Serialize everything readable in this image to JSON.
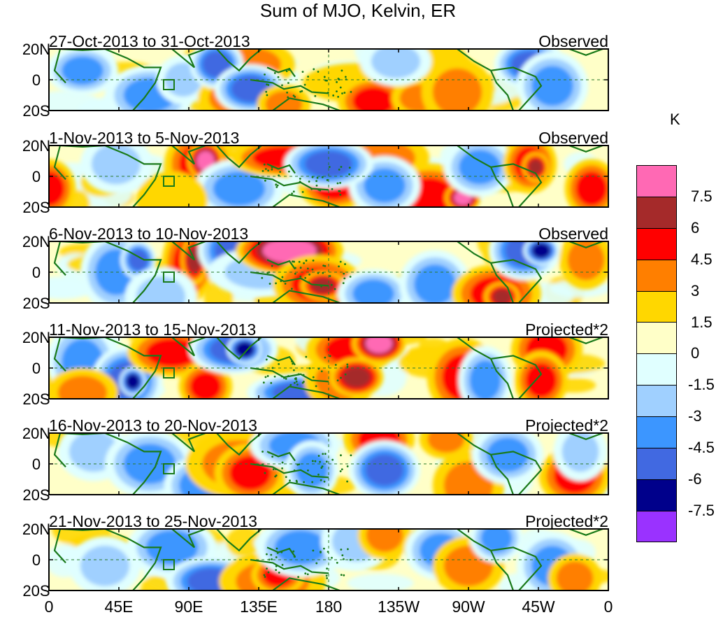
{
  "title": "Sum of MJO, Kelvin, ER",
  "colorbar": {
    "unit": "K",
    "colors": [
      "#ff69b4",
      "#a52a2a",
      "#ff0000",
      "#ff7f00",
      "#ffd700",
      "#ffffc8",
      "#e0ffff",
      "#a0d0ff",
      "#3c96ff",
      "#4169e1",
      "#00008b",
      "#9a32ff"
    ],
    "labels": [
      "7.5",
      "6",
      "4.5",
      "3",
      "1.5",
      "0",
      "-1.5",
      "-3",
      "-4.5",
      "-6",
      "-7.5"
    ]
  },
  "panels": [
    {
      "label": "27-Oct-2013 to 31-Oct-2013",
      "tag": "Observed"
    },
    {
      "label": "1-Nov-2013 to 5-Nov-2013",
      "tag": "Observed"
    },
    {
      "label": "6-Nov-2013 to 10-Nov-2013",
      "tag": "Observed"
    },
    {
      "label": "11-Nov-2013 to 15-Nov-2013",
      "tag": "Projected*2"
    },
    {
      "label": "16-Nov-2013 to 20-Nov-2013",
      "tag": "Projected*2"
    },
    {
      "label": "21-Nov-2013 to 25-Nov-2013",
      "tag": "Projected*2"
    }
  ],
  "y_ticks": [
    "20N",
    "0",
    "20S"
  ],
  "x_ticks": [
    "0",
    "45E",
    "90E",
    "135E",
    "180",
    "135W",
    "90W",
    "45W",
    "0"
  ],
  "icons": {
    "region_box": "rectangle-icon",
    "continents": "coastline-icon"
  }
}
